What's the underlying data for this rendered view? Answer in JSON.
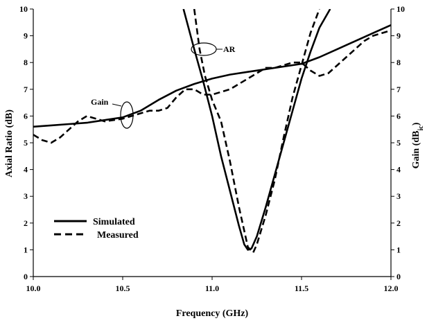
{
  "chart_data": {
    "type": "line",
    "xlabel": "Frequency (GHz)",
    "ylabel_left": "Axial Ratio  (dB)",
    "ylabel_right_main": "Gain  (dB",
    "ylabel_right_sub": "ic",
    "ylabel_right_close": ")",
    "xlim": [
      10.0,
      12.0
    ],
    "ylim": [
      0,
      10
    ],
    "x_ticks": [
      "10.0",
      "10.5",
      "11.0",
      "11.5",
      "12.0"
    ],
    "y_ticks": [
      "0",
      "1",
      "2",
      "3",
      "4",
      "5",
      "6",
      "7",
      "8",
      "9",
      "10"
    ],
    "grid": false,
    "legend": {
      "placement": "lower-left",
      "entries": [
        {
          "label": "Simulated",
          "style": "solid"
        },
        {
          "label": "Measured",
          "style": "dashed"
        }
      ]
    },
    "annotations": {
      "ar": "AR",
      "gain": "Gain"
    },
    "series": [
      {
        "name": "Simulated",
        "metric": "AR",
        "style": "solid",
        "x": [
          10.84,
          10.9,
          10.95,
          11.0,
          11.05,
          11.1,
          11.15,
          11.18,
          11.2,
          11.22,
          11.25,
          11.3,
          11.35,
          11.4,
          11.45,
          11.5,
          11.55,
          11.6,
          11.66
        ],
        "y": [
          10.0,
          8.5,
          7.3,
          6.0,
          4.5,
          3.2,
          1.9,
          1.2,
          1.0,
          1.05,
          1.5,
          2.6,
          3.8,
          5.0,
          6.2,
          7.4,
          8.4,
          9.3,
          10.0
        ]
      },
      {
        "name": "Measured",
        "metric": "AR",
        "style": "dashed",
        "x": [
          10.9,
          10.93,
          10.96,
          11.0,
          11.05,
          11.1,
          11.15,
          11.2,
          11.23,
          11.25,
          11.3,
          11.35,
          11.4,
          11.45,
          11.5,
          11.55,
          11.6
        ],
        "y": [
          10.0,
          8.5,
          7.5,
          6.6,
          5.8,
          4.3,
          2.6,
          1.1,
          0.9,
          1.2,
          2.3,
          3.6,
          5.2,
          6.7,
          7.9,
          9.1,
          10.0
        ]
      },
      {
        "name": "Simulated",
        "metric": "Gain",
        "style": "solid",
        "x": [
          10.0,
          10.1,
          10.2,
          10.3,
          10.4,
          10.5,
          10.6,
          10.7,
          10.8,
          10.9,
          11.0,
          11.1,
          11.2,
          11.3,
          11.4,
          11.5,
          11.6,
          11.7,
          11.8,
          11.9,
          12.0
        ],
        "y": [
          5.6,
          5.65,
          5.7,
          5.75,
          5.85,
          5.95,
          6.2,
          6.6,
          6.95,
          7.2,
          7.4,
          7.55,
          7.65,
          7.75,
          7.85,
          7.95,
          8.2,
          8.5,
          8.8,
          9.1,
          9.4
        ]
      },
      {
        "name": "Measured",
        "metric": "Gain",
        "style": "dashed",
        "x": [
          10.0,
          10.05,
          10.1,
          10.15,
          10.2,
          10.25,
          10.3,
          10.35,
          10.4,
          10.45,
          10.5,
          10.55,
          10.6,
          10.65,
          10.7,
          10.75,
          10.8,
          10.85,
          10.9,
          10.95,
          11.0,
          11.05,
          11.1,
          11.15,
          11.2,
          11.25,
          11.3,
          11.35,
          11.4,
          11.45,
          11.5,
          11.55,
          11.6,
          11.65,
          11.7,
          11.75,
          11.8,
          11.85,
          11.9,
          11.95,
          12.0
        ],
        "y": [
          5.3,
          5.1,
          5.0,
          5.2,
          5.5,
          5.8,
          6.0,
          5.9,
          5.8,
          5.85,
          5.9,
          6.0,
          6.1,
          6.2,
          6.2,
          6.3,
          6.7,
          7.0,
          7.0,
          6.8,
          6.8,
          6.9,
          7.0,
          7.2,
          7.4,
          7.6,
          7.8,
          7.8,
          7.9,
          8.0,
          8.0,
          7.7,
          7.5,
          7.6,
          7.9,
          8.2,
          8.5,
          8.8,
          9.0,
          9.1,
          9.2
        ]
      }
    ]
  }
}
